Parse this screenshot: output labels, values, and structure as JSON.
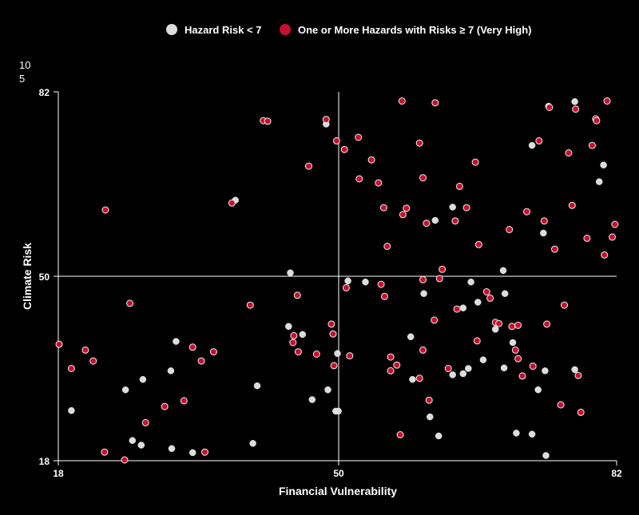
{
  "colors": {
    "background": "#000000",
    "axis": "#ffffff",
    "gridline": "#ffffff",
    "series_low": "#dcdcdc",
    "series_high": "#c8102e",
    "point_stroke": "#f0f0f0"
  },
  "legend": {
    "items": [
      {
        "label": "Hazard Risk < 7",
        "color": "#dcdcdc"
      },
      {
        "label": "One or More Hazards with Risks ≥ 7 (Very High)",
        "color": "#c8102e"
      }
    ]
  },
  "corner_text": {
    "line1": "10",
    "line2": "5"
  },
  "chart_data": {
    "type": "scatter",
    "xlabel": "Financial Vulnerability",
    "ylabel": "Climate Risk",
    "xlim": [
      18,
      82
    ],
    "ylim": [
      18,
      82
    ],
    "x_ticks": [
      "18",
      "50",
      "82"
    ],
    "y_ticks": [
      "82",
      "50",
      "18"
    ],
    "reference_lines": {
      "x": 50,
      "y": 50
    },
    "legend_position": "top",
    "series": [
      {
        "name": "Hazard Risk < 7",
        "color": "#dcdcdc",
        "points": [
          [
            19.5,
            26.7
          ],
          [
            27.7,
            32.1
          ],
          [
            30.9,
            33.6
          ],
          [
            25.7,
            30.3
          ],
          [
            31.5,
            38.7
          ],
          [
            27.5,
            20.7
          ],
          [
            26.5,
            21.5
          ],
          [
            31.0,
            20.1
          ],
          [
            33.4,
            19.4
          ],
          [
            38.3,
            63.2
          ],
          [
            44.6,
            50.6
          ],
          [
            40.8,
            31.0
          ],
          [
            44.4,
            41.3
          ],
          [
            46.0,
            39.9
          ],
          [
            48.7,
            76.4
          ],
          [
            50.0,
            36.6
          ],
          [
            51.2,
            49.2
          ],
          [
            49.8,
            26.6
          ],
          [
            50.1,
            26.6
          ],
          [
            40.3,
            21.0
          ],
          [
            47.1,
            28.6
          ],
          [
            48.9,
            30.3
          ],
          [
            53.2,
            49.0
          ],
          [
            58.4,
            39.5
          ],
          [
            59.9,
            47.0
          ],
          [
            63.2,
            62.0
          ],
          [
            61.2,
            59.7
          ],
          [
            64.4,
            33.1
          ],
          [
            65.0,
            34.0
          ],
          [
            68.1,
            40.8
          ],
          [
            69.0,
            51.0
          ],
          [
            69.1,
            34.1
          ],
          [
            70.1,
            38.5
          ],
          [
            66.7,
            35.5
          ],
          [
            66.1,
            45.5
          ],
          [
            69.2,
            47.0
          ],
          [
            73.6,
            57.5
          ],
          [
            74.2,
            79.5
          ],
          [
            72.3,
            72.7
          ],
          [
            70.5,
            22.8
          ],
          [
            73.0,
            30.3
          ],
          [
            73.8,
            33.6
          ],
          [
            77.2,
            33.8
          ],
          [
            73.9,
            18.9
          ],
          [
            72.3,
            22.6
          ],
          [
            77.2,
            80.3
          ],
          [
            80.0,
            66.4
          ],
          [
            80.5,
            69.3
          ],
          [
            65.3,
            49.0
          ],
          [
            64.4,
            44.5
          ],
          [
            63.2,
            32.9
          ],
          [
            61.6,
            22.3
          ],
          [
            60.6,
            25.6
          ],
          [
            58.6,
            32.1
          ]
        ]
      },
      {
        "name": "One or More Hazards with Risks ≥ 7 (Very High)",
        "color": "#c8102e",
        "points": [
          [
            17.6,
            38.2
          ],
          [
            19.5,
            34.0
          ],
          [
            21.1,
            37.2
          ],
          [
            22.0,
            35.3
          ],
          [
            23.4,
            61.5
          ],
          [
            23.3,
            19.5
          ],
          [
            25.6,
            17.2
          ],
          [
            26.2,
            45.3
          ],
          [
            28.0,
            24.6
          ],
          [
            30.2,
            27.4
          ],
          [
            32.4,
            28.4
          ],
          [
            33.4,
            37.7
          ],
          [
            34.4,
            35.3
          ],
          [
            34.8,
            19.5
          ],
          [
            35.8,
            36.9
          ],
          [
            37.9,
            62.7
          ],
          [
            40.0,
            45.0
          ],
          [
            41.5,
            77.0
          ],
          [
            42.0,
            76.9
          ],
          [
            44.9,
            38.5
          ],
          [
            45.4,
            46.7
          ],
          [
            45.0,
            39.7
          ],
          [
            45.5,
            36.9
          ],
          [
            46.7,
            69.1
          ],
          [
            47.6,
            36.5
          ],
          [
            48.7,
            77.2
          ],
          [
            49.3,
            41.7
          ],
          [
            49.5,
            40.0
          ],
          [
            49.6,
            34.5
          ],
          [
            49.9,
            73.5
          ],
          [
            51.0,
            48.0
          ],
          [
            50.8,
            72.0
          ],
          [
            51.4,
            36.2
          ],
          [
            52.4,
            74.1
          ],
          [
            52.5,
            66.9
          ],
          [
            53.9,
            70.2
          ],
          [
            54.7,
            66.2
          ],
          [
            55.0,
            48.6
          ],
          [
            55.4,
            46.5
          ],
          [
            55.3,
            61.9
          ],
          [
            55.7,
            55.2
          ],
          [
            56.1,
            36.0
          ],
          [
            56.1,
            33.6
          ],
          [
            57.4,
            80.4
          ],
          [
            57.5,
            60.7
          ],
          [
            56.8,
            34.6
          ],
          [
            57.2,
            22.5
          ],
          [
            57.9,
            61.8
          ],
          [
            59.4,
            73.1
          ],
          [
            59.8,
            67.1
          ],
          [
            59.8,
            49.4
          ],
          [
            60.2,
            59.2
          ],
          [
            59.8,
            37.2
          ],
          [
            59.4,
            32.3
          ],
          [
            60.5,
            28.5
          ],
          [
            61.2,
            80.1
          ],
          [
            61.7,
            49.6
          ],
          [
            62.7,
            34.0
          ],
          [
            63.5,
            59.6
          ],
          [
            64.0,
            65.6
          ],
          [
            64.8,
            61.9
          ],
          [
            65.8,
            69.8
          ],
          [
            66.2,
            55.5
          ],
          [
            66.0,
            38.8
          ],
          [
            67.5,
            46.2
          ],
          [
            68.1,
            42.0
          ],
          [
            68.5,
            41.8
          ],
          [
            69.7,
            58.1
          ],
          [
            70.0,
            41.3
          ],
          [
            70.4,
            37.2
          ],
          [
            70.7,
            35.7
          ],
          [
            70.7,
            41.5
          ],
          [
            71.2,
            32.7
          ],
          [
            71.7,
            61.2
          ],
          [
            72.4,
            34.4
          ],
          [
            73.1,
            73.5
          ],
          [
            73.7,
            59.6
          ],
          [
            74.0,
            41.7
          ],
          [
            74.3,
            79.3
          ],
          [
            74.9,
            54.7
          ],
          [
            75.6,
            27.7
          ],
          [
            76.0,
            45.0
          ],
          [
            76.5,
            71.4
          ],
          [
            76.9,
            62.3
          ],
          [
            77.3,
            79.0
          ],
          [
            77.6,
            32.8
          ],
          [
            77.9,
            26.4
          ],
          [
            78.6,
            56.6
          ],
          [
            79.2,
            72.7
          ],
          [
            79.6,
            77.3
          ],
          [
            79.7,
            77.0
          ],
          [
            80.6,
            53.7
          ],
          [
            80.9,
            80.4
          ],
          [
            81.5,
            56.8
          ],
          [
            81.8,
            59.0
          ],
          [
            62.0,
            51.2
          ],
          [
            63.7,
            44.3
          ],
          [
            67.1,
            47.3
          ],
          [
            61.1,
            42.4
          ]
        ]
      }
    ]
  }
}
